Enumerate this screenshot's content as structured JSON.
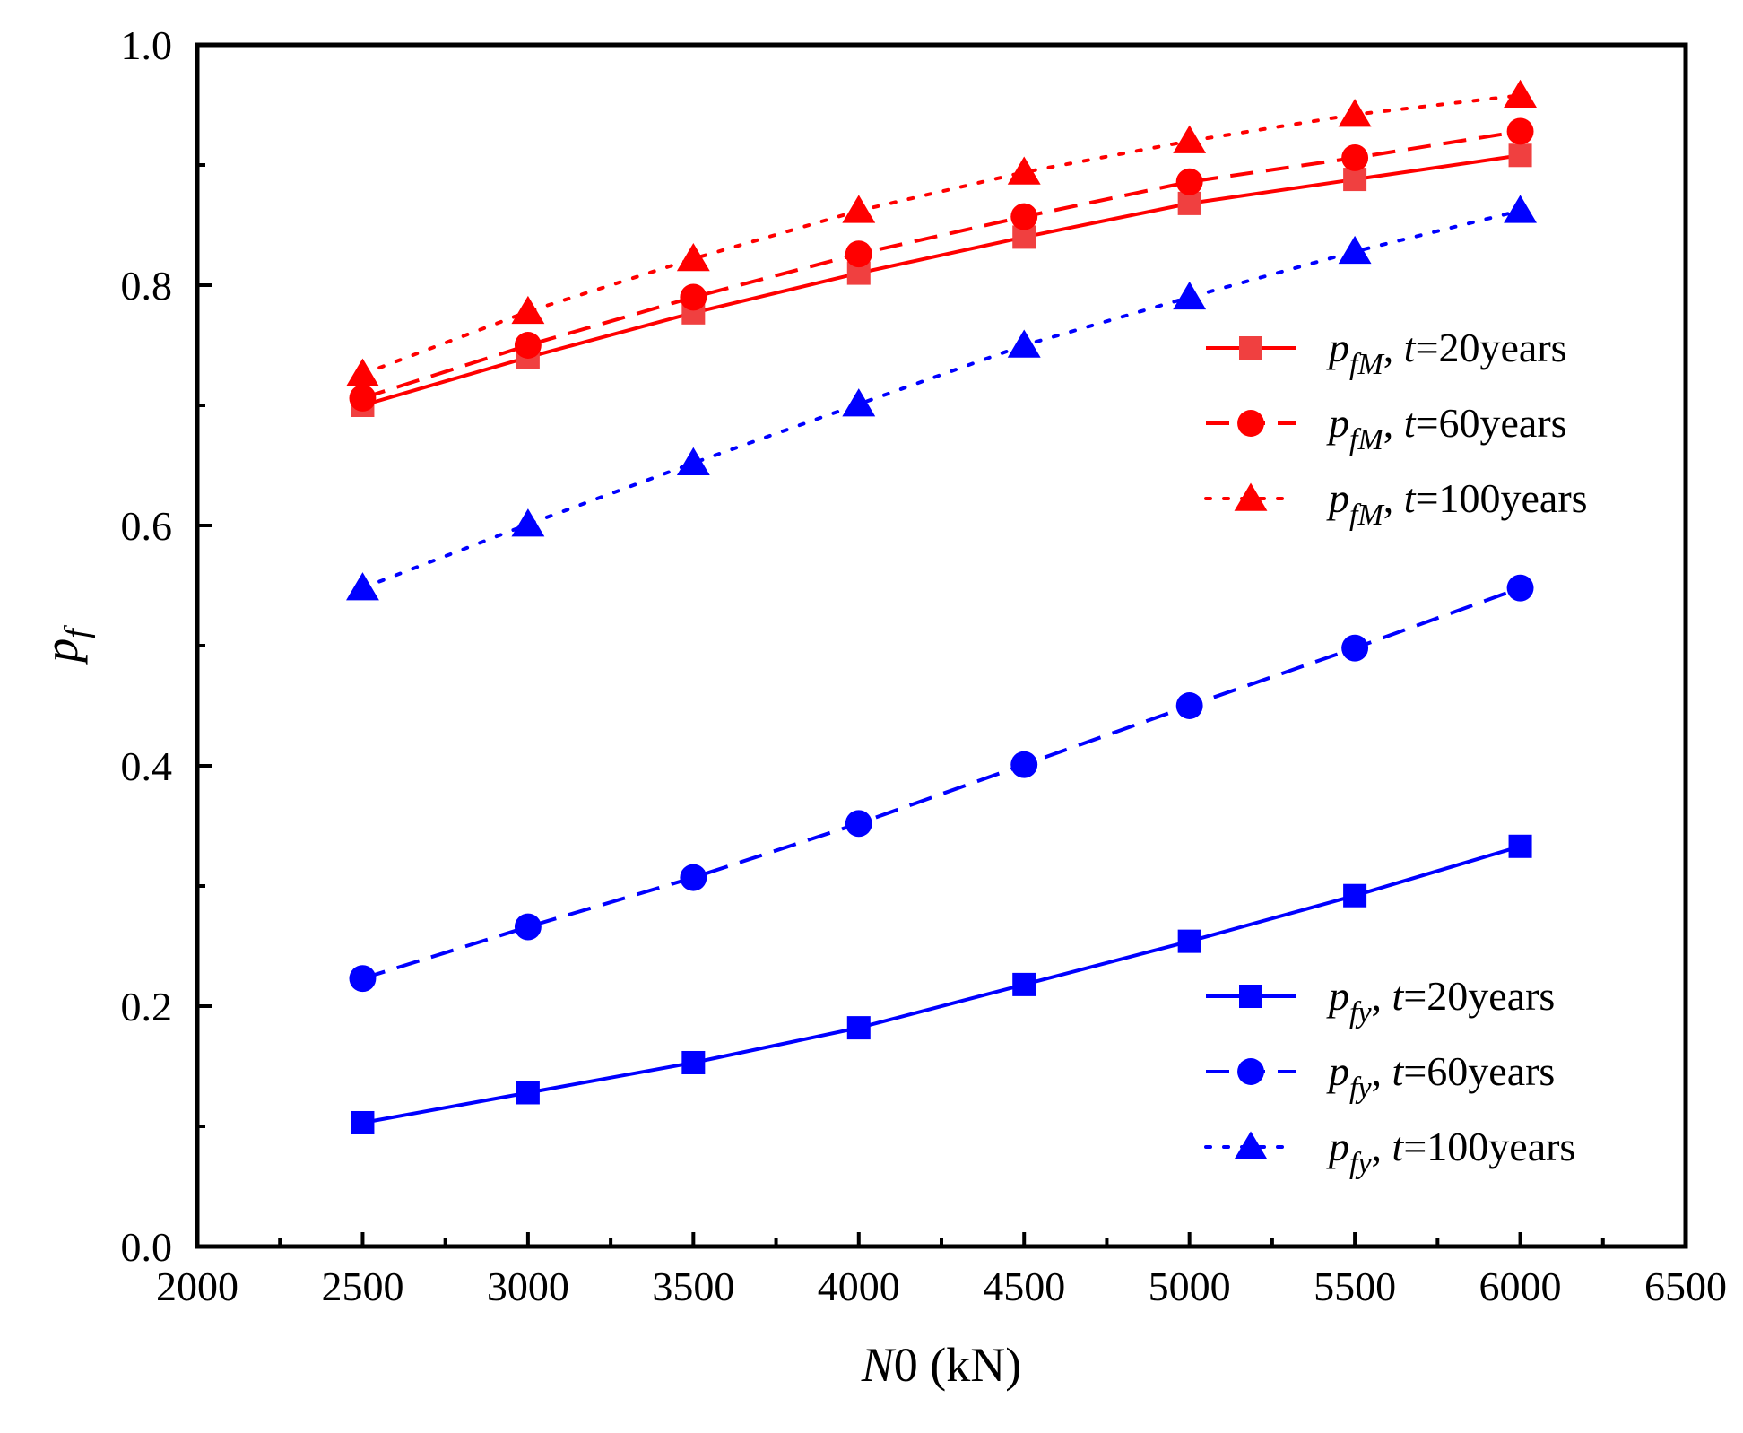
{
  "chart_data": {
    "type": "line",
    "title": "",
    "xlabel": {
      "italic": "N",
      "rest": "0 (kN)"
    },
    "ylabel": {
      "base": "p",
      "sub": "f"
    },
    "xlim": [
      2000,
      6500
    ],
    "ylim": [
      0.0,
      1.0
    ],
    "xticks": [
      "2000",
      "2500",
      "3000",
      "3500",
      "4000",
      "4500",
      "5000",
      "5500",
      "6000",
      "6500"
    ],
    "yticks": [
      "0.0",
      "0.2",
      "0.4",
      "0.6",
      "0.8",
      "1.0"
    ],
    "x": [
      2500,
      3000,
      3500,
      4000,
      4500,
      5000,
      5500,
      6000
    ],
    "series": [
      {
        "id": "pfM-20",
        "sub": "fM",
        "years": "20years",
        "color": "#ff0000",
        "marker_color": "#f04040",
        "dash": "solid",
        "marker": "square",
        "legend_group": "top",
        "values": [
          0.7,
          0.74,
          0.777,
          0.81,
          0.84,
          0.868,
          0.888,
          0.908
        ]
      },
      {
        "id": "pfM-60",
        "sub": "fM",
        "years": "60years",
        "color": "#ff0000",
        "marker_color": "#ff0000",
        "dash": "dashed",
        "marker": "circle",
        "legend_group": "top",
        "values": [
          0.706,
          0.75,
          0.79,
          0.826,
          0.857,
          0.886,
          0.906,
          0.928
        ]
      },
      {
        "id": "pfM-100",
        "sub": "fM",
        "years": "100years",
        "color": "#ff0000",
        "marker_color": "#ff0000",
        "dash": "dotted",
        "marker": "triangle",
        "legend_group": "top",
        "values": [
          0.726,
          0.778,
          0.822,
          0.862,
          0.894,
          0.92,
          0.942,
          0.958
        ]
      },
      {
        "id": "pfy-20",
        "sub": "fy",
        "years": "20years",
        "color": "#0000ff",
        "marker_color": "#0000ff",
        "dash": "solid",
        "marker": "square",
        "legend_group": "bottom",
        "values": [
          0.103,
          0.128,
          0.153,
          0.182,
          0.218,
          0.254,
          0.292,
          0.333
        ]
      },
      {
        "id": "pfy-60",
        "sub": "fy",
        "years": "60years",
        "color": "#0000ff",
        "marker_color": "#0000ff",
        "dash": "dashed",
        "marker": "circle",
        "legend_group": "bottom",
        "values": [
          0.223,
          0.266,
          0.307,
          0.352,
          0.401,
          0.45,
          0.498,
          0.548
        ]
      },
      {
        "id": "pfy-100",
        "sub": "fy",
        "years": "100years",
        "color": "#0000ff",
        "marker_color": "#0000ff",
        "dash": "dotted",
        "marker": "triangle",
        "legend_group": "bottom",
        "values": [
          0.548,
          0.601,
          0.652,
          0.701,
          0.75,
          0.79,
          0.828,
          0.862
        ]
      }
    ],
    "legends": [
      {
        "position": "upper-right",
        "series": [
          "pfM-20",
          "pfM-60",
          "pfM-100"
        ]
      },
      {
        "position": "lower-right",
        "series": [
          "pfy-20",
          "pfy-60",
          "pfy-100"
        ]
      }
    ]
  }
}
